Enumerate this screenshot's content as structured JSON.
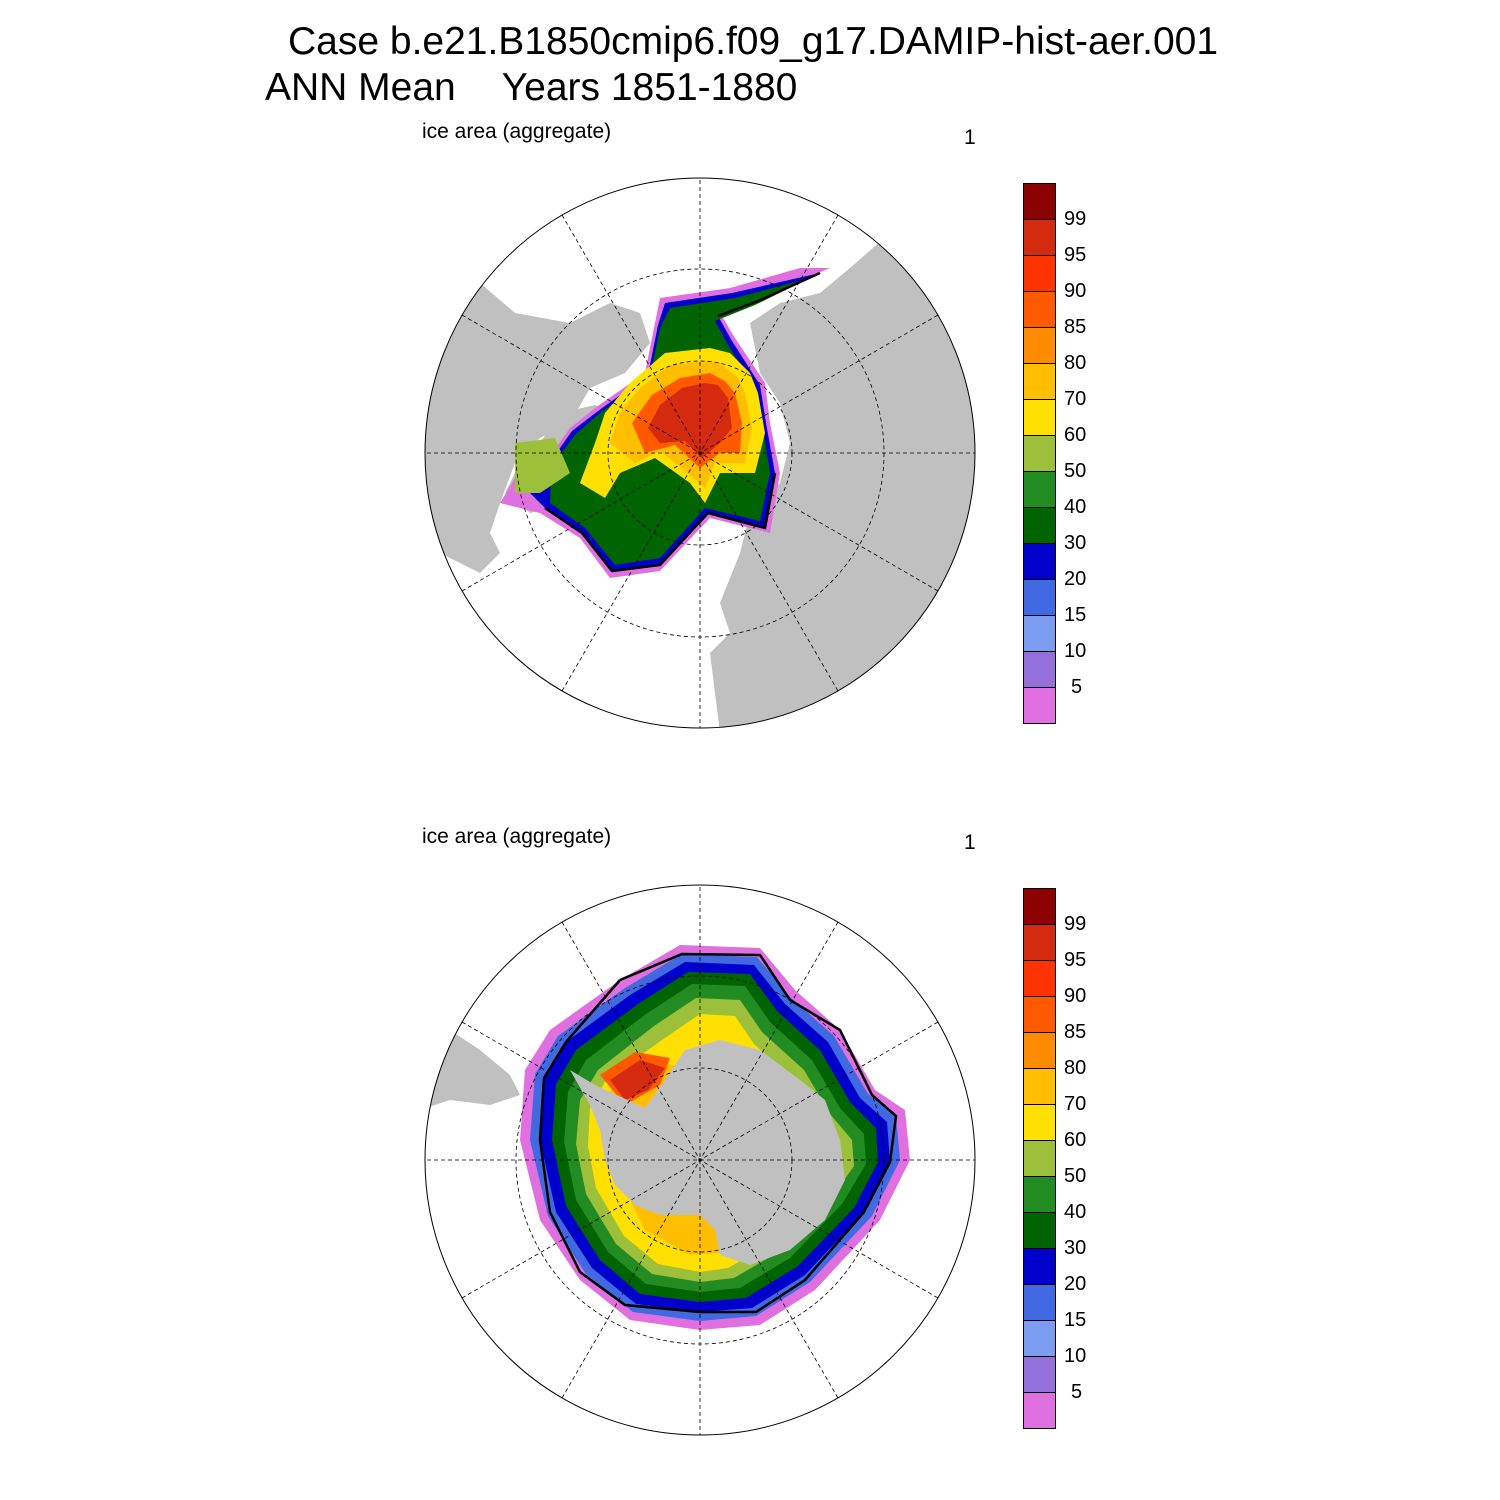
{
  "title": {
    "line1": "Case b.e21.B1850cmip6.f09_g17.DAMIP-hist-aer.001",
    "line2_a": "ANN Mean",
    "line2_b": "Years 1851-1880"
  },
  "panels": [
    {
      "title": "ice area  (aggregate)",
      "number": "1",
      "hemisphere": "north"
    },
    {
      "title": "ice area  (aggregate)",
      "number": "1",
      "hemisphere": "south"
    }
  ],
  "colorbar": {
    "labels": [
      "99",
      "95",
      "90",
      "85",
      "80",
      "70",
      "60",
      "50",
      "40",
      "30",
      "20",
      "15",
      "10",
      "5"
    ],
    "colors": [
      "#8b0000",
      "#d42a10",
      "#ff3300",
      "#ff5a00",
      "#ff8c00",
      "#ffbf00",
      "#ffe000",
      "#9dc03a",
      "#228b22",
      "#006400",
      "#0000cd",
      "#4169e1",
      "#7b9cf0",
      "#9370db",
      "#e06fe0"
    ]
  },
  "colors": {
    "land": "#c0c0c0",
    "ocean": "#ffffff",
    "edge_line": "#000000"
  }
}
